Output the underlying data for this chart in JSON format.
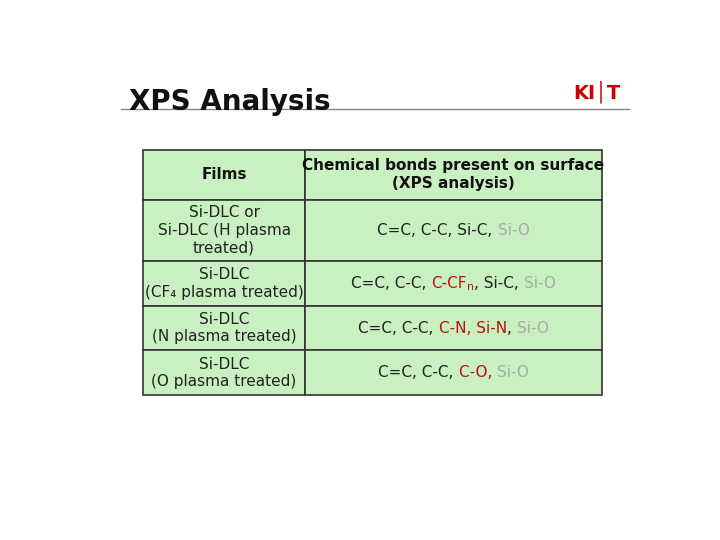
{
  "title": "XPS Analysis",
  "title_fontsize": 20,
  "title_fontweight": "bold",
  "bg_color": "#ffffff",
  "table_bg": "#c8f0c0",
  "border_color": "#333333",
  "col1_header": "Films",
  "col2_header": "Chemical bonds present on surface\n(XPS analysis)",
  "rows": [
    {
      "col1": "Si-DLC or\nSi-DLC (H plasma\ntreated)",
      "col2_parts": [
        {
          "text": "C=C, C-C, Si-C, ",
          "color": "#222222",
          "sub": false
        },
        {
          "text": "Si-O",
          "color": "#aaaaaa",
          "sub": false
        }
      ]
    },
    {
      "col1": "Si-DLC\n(CF₄ plasma treated)",
      "col2_parts": [
        {
          "text": "C=C, C-C, ",
          "color": "#222222",
          "sub": false
        },
        {
          "text": "C-CF",
          "color": "#bb1111",
          "sub": false
        },
        {
          "text": "n",
          "color": "#bb1111",
          "sub": true
        },
        {
          "text": ", Si-C, ",
          "color": "#222222",
          "sub": false
        },
        {
          "text": "Si-O",
          "color": "#aaaaaa",
          "sub": false
        }
      ]
    },
    {
      "col1": "Si-DLC\n(N plasma treated)",
      "col2_parts": [
        {
          "text": "C=C, C-C, ",
          "color": "#222222",
          "sub": false
        },
        {
          "text": "C-N, Si-N",
          "color": "#bb1111",
          "sub": false
        },
        {
          "text": ", ",
          "color": "#222222",
          "sub": false
        },
        {
          "text": "Si-O",
          "color": "#aaaaaa",
          "sub": false
        }
      ]
    },
    {
      "col1": "Si-DLC\n(O plasma treated)",
      "col2_parts": [
        {
          "text": "C=C, C-C, ",
          "color": "#222222",
          "sub": false
        },
        {
          "text": "C-O, ",
          "color": "#bb1111",
          "sub": false
        },
        {
          "text": "Si-O",
          "color": "#aaaaaa",
          "sub": false
        }
      ]
    }
  ],
  "font_family": "DejaVu Sans",
  "cell_fontsize": 11,
  "header_fontsize": 11,
  "col1_label_fontsize": 11
}
